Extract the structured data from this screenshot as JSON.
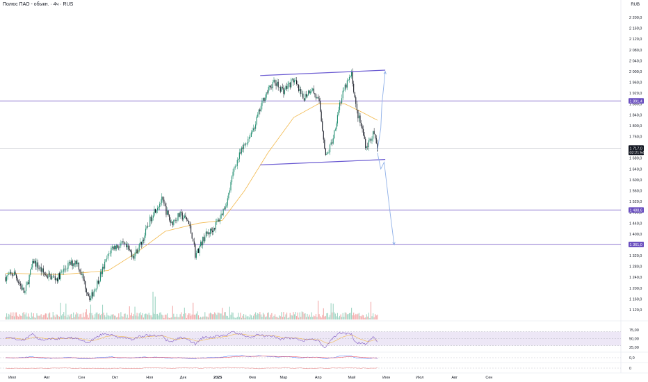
{
  "header": {
    "title": "Полюс ПАО - обыкн. · 4ч · RUS",
    "currency": "RUB"
  },
  "colors": {
    "level_line": "#7b61c9",
    "level_badge": "#6a4fbf",
    "channel": "#6b5bd2",
    "arrow": "#8fb0e8",
    "ma": "#f2b84b",
    "candle_up": "#1e8c6e",
    "candle_down": "#131722",
    "rsi_line": "#7e57c2",
    "rsi_band": "#ede7f6",
    "price_badge": "#131722"
  },
  "chart_data": {
    "type": "candlestick",
    "title": "",
    "y_axis": {
      "ylim": [
        1090,
        2240
      ],
      "ticks": [
        "2 200,0",
        "2 160,0",
        "2 120,0",
        "2 080,0",
        "2 040,0",
        "2 000,0",
        "1 960,0",
        "1 920,0",
        "1 880,0",
        "1 840,0",
        "1 800,0",
        "1 760,0",
        "1 720,0",
        "1 680,0",
        "1 640,0",
        "1 600,0",
        "1 560,0",
        "1 520,0",
        "1 480,0",
        "1 440,0",
        "1 400,0",
        "1 360,0",
        "1 320,0",
        "1 280,0",
        "1 240,0",
        "1 200,0",
        "1 160,0",
        "1 120,0"
      ]
    },
    "x_axis": {
      "labels": [
        "Июл",
        "Авг",
        "Сен",
        "Окт",
        "Ноя",
        "Дек",
        "2025",
        "Фев",
        "Мар",
        "Апр",
        "Май",
        "Июн",
        "Июл",
        "Авг",
        "Сен"
      ]
    },
    "horizontal_levels": [
      {
        "value": 1891.4,
        "label": "1 891,4"
      },
      {
        "value": 1488.6,
        "label": "1 488,6"
      },
      {
        "value": 1361.0,
        "label": "1 361,0"
      }
    ],
    "current_price": {
      "value": 1717.0,
      "label": "1 717,0",
      "countdown": "02:21:54"
    },
    "price_path": [
      {
        "date": "2024-06-25",
        "close": 1240
      },
      {
        "date": "2024-07-03",
        "close": 1255
      },
      {
        "date": "2024-07-12",
        "close": 1180
      },
      {
        "date": "2024-07-20",
        "close": 1300
      },
      {
        "date": "2024-07-30",
        "close": 1250
      },
      {
        "date": "2024-08-10",
        "close": 1235
      },
      {
        "date": "2024-08-20",
        "close": 1285
      },
      {
        "date": "2024-08-28",
        "close": 1300
      },
      {
        "date": "2024-09-05",
        "close": 1200
      },
      {
        "date": "2024-09-09",
        "close": 1160
      },
      {
        "date": "2024-09-18",
        "close": 1250
      },
      {
        "date": "2024-09-28",
        "close": 1350
      },
      {
        "date": "2024-10-08",
        "close": 1360
      },
      {
        "date": "2024-10-18",
        "close": 1320
      },
      {
        "date": "2024-10-26",
        "close": 1380
      },
      {
        "date": "2024-11-04",
        "close": 1480
      },
      {
        "date": "2024-11-12",
        "close": 1525
      },
      {
        "date": "2024-11-20",
        "close": 1440
      },
      {
        "date": "2024-11-28",
        "close": 1470
      },
      {
        "date": "2024-12-05",
        "close": 1450
      },
      {
        "date": "2024-12-10",
        "close": 1380
      },
      {
        "date": "2024-12-12",
        "close": 1320
      },
      {
        "date": "2024-12-20",
        "close": 1390
      },
      {
        "date": "2024-12-28",
        "close": 1420
      },
      {
        "date": "2025-01-03",
        "close": 1460
      },
      {
        "date": "2025-01-10",
        "close": 1530
      },
      {
        "date": "2025-01-16",
        "close": 1650
      },
      {
        "date": "2025-01-24",
        "close": 1720
      },
      {
        "date": "2025-02-03",
        "close": 1800
      },
      {
        "date": "2025-02-12",
        "close": 1910
      },
      {
        "date": "2025-02-20",
        "close": 1960
      },
      {
        "date": "2025-03-01",
        "close": 1930
      },
      {
        "date": "2025-03-10",
        "close": 1970
      },
      {
        "date": "2025-03-18",
        "close": 1900
      },
      {
        "date": "2025-03-26",
        "close": 1940
      },
      {
        "date": "2025-04-02",
        "close": 1880
      },
      {
        "date": "2025-04-08",
        "close": 1680
      },
      {
        "date": "2025-04-14",
        "close": 1750
      },
      {
        "date": "2025-04-20",
        "close": 1880
      },
      {
        "date": "2025-04-26",
        "close": 1950
      },
      {
        "date": "2025-05-01",
        "close": 1990
      },
      {
        "date": "2025-05-05",
        "close": 1860
      },
      {
        "date": "2025-05-10",
        "close": 1790
      },
      {
        "date": "2025-05-14",
        "close": 1720
      },
      {
        "date": "2025-05-20",
        "close": 1770
      },
      {
        "date": "2025-05-24",
        "close": 1717
      }
    ],
    "ma_path": [
      {
        "date": "2024-06-25",
        "value": 1255
      },
      {
        "date": "2024-08-15",
        "value": 1250
      },
      {
        "date": "2024-09-25",
        "value": 1265
      },
      {
        "date": "2024-10-20",
        "value": 1330
      },
      {
        "date": "2024-11-15",
        "value": 1410
      },
      {
        "date": "2024-12-15",
        "value": 1440
      },
      {
        "date": "2025-01-05",
        "value": 1450
      },
      {
        "date": "2025-01-25",
        "value": 1560
      },
      {
        "date": "2025-02-15",
        "value": 1700
      },
      {
        "date": "2025-03-10",
        "value": 1830
      },
      {
        "date": "2025-04-01",
        "value": 1880
      },
      {
        "date": "2025-04-25",
        "value": 1880
      },
      {
        "date": "2025-05-10",
        "value": 1850
      },
      {
        "date": "2025-05-24",
        "value": 1820
      }
    ],
    "channel_lines": [
      {
        "from": {
          "date": "2025-02-08",
          "value": 1985
        },
        "to": {
          "date": "2025-05-31",
          "value": 2005
        }
      },
      {
        "from": {
          "date": "2025-02-08",
          "value": 1655
        },
        "to": {
          "date": "2025-05-31",
          "value": 1675
        }
      }
    ],
    "projection_arrows": [
      {
        "points": [
          {
            "date": "2025-05-24",
            "value": 1710
          },
          {
            "date": "2025-05-27",
            "value": 1790
          },
          {
            "date": "2025-05-28",
            "value": 1880
          },
          {
            "date": "2025-05-31",
            "value": 2000
          }
        ]
      },
      {
        "points": [
          {
            "date": "2025-05-24",
            "value": 1700
          },
          {
            "date": "2025-05-27",
            "value": 1640
          },
          {
            "date": "2025-05-30",
            "value": 1665
          },
          {
            "date": "2025-06-04",
            "value": 1490
          },
          {
            "date": "2025-06-08",
            "value": 1360
          }
        ]
      }
    ],
    "rsi": {
      "ylim": [
        15,
        85
      ],
      "ticks": [
        "75,00",
        "50,00",
        "25,00"
      ],
      "band": [
        30,
        70
      ]
    },
    "macd": {
      "ticks": [
        "0,0"
      ]
    },
    "osc3": {
      "ticks": [
        "0"
      ]
    }
  }
}
